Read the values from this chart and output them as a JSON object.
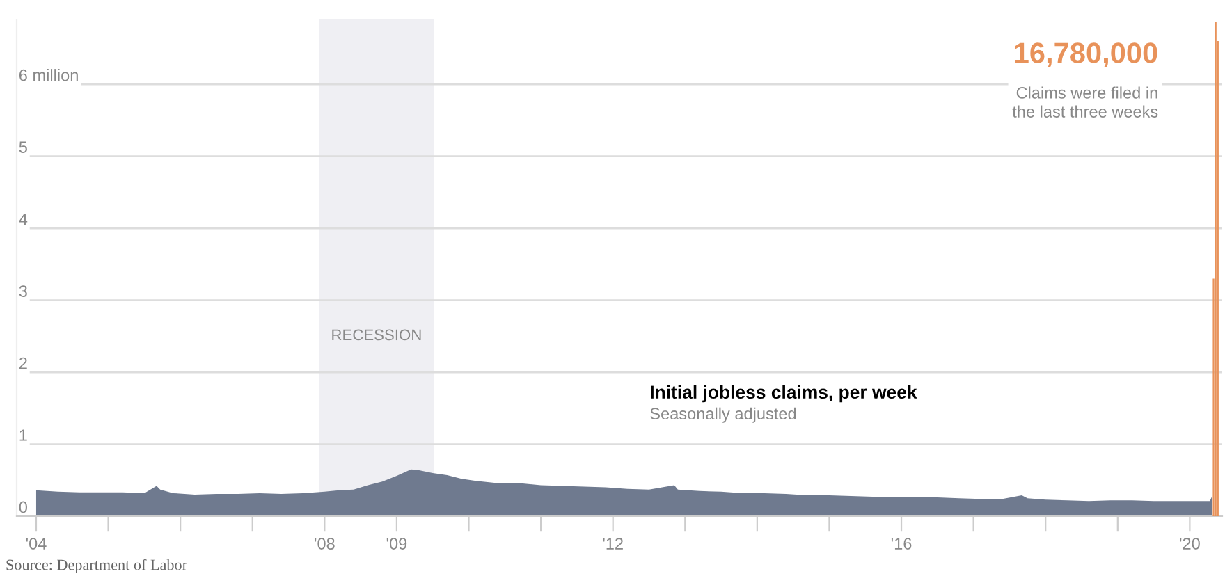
{
  "chart_data": {
    "type": "area",
    "title": "Initial jobless claims, per week",
    "subtitle": "Seasonally adjusted",
    "annotations": [
      "16,780,000",
      "Claims were filed in\nthe last three weeks",
      "Source: Department of Labor"
    ],
    "xlim": [
      2003.73,
      2020.45
    ],
    "xticks": [
      {
        "value": 2004,
        "label": "'04"
      },
      {
        "value": 2005,
        "label": null
      },
      {
        "value": 2006,
        "label": null
      },
      {
        "value": 2007,
        "label": null
      },
      {
        "value": 2008,
        "label": "'08"
      },
      {
        "value": 2009,
        "label": "'09"
      },
      {
        "value": 2010,
        "label": null
      },
      {
        "value": 2011,
        "label": null
      },
      {
        "value": 2012,
        "label": "'12"
      },
      {
        "value": 2013,
        "label": null
      },
      {
        "value": 2014,
        "label": null
      },
      {
        "value": 2015,
        "label": null
      },
      {
        "value": 2016,
        "label": "'16"
      },
      {
        "value": 2017,
        "label": null
      },
      {
        "value": 2018,
        "label": null
      },
      {
        "value": 2019,
        "label": null
      },
      {
        "value": 2020,
        "label": "'20"
      }
    ],
    "ylim": [
      0,
      6.9
    ],
    "yticks": [
      0,
      1,
      2,
      3,
      4,
      5,
      {
        "value": 6,
        "label": "6 million"
      }
    ],
    "grid": "y",
    "bands": [
      {
        "axis": "x",
        "from": 2007.92,
        "to": 2009.52,
        "label": "RECESSION",
        "color": "#efeff3"
      }
    ],
    "series": [
      {
        "color": "#6f7a8f",
        "x": [
          2004.0,
          2004.3,
          2004.6,
          2004.9,
          2005.2,
          2005.5,
          2005.67,
          2005.72,
          2005.9,
          2006.2,
          2006.5,
          2006.8,
          2007.1,
          2007.4,
          2007.7,
          2008.0,
          2008.2,
          2008.4,
          2008.6,
          2008.8,
          2009.0,
          2009.2,
          2009.3,
          2009.5,
          2009.7,
          2009.9,
          2010.1,
          2010.4,
          2010.7,
          2011.0,
          2011.3,
          2011.6,
          2011.9,
          2012.2,
          2012.5,
          2012.85,
          2012.9,
          2013.2,
          2013.5,
          2013.8,
          2014.1,
          2014.4,
          2014.7,
          2015.0,
          2015.3,
          2015.6,
          2015.9,
          2016.2,
          2016.5,
          2016.8,
          2017.1,
          2017.4,
          2017.67,
          2017.75,
          2018.0,
          2018.3,
          2018.6,
          2018.9,
          2019.2,
          2019.5,
          2019.8,
          2020.1,
          2020.28,
          2020.31
        ],
        "values": [
          0.36,
          0.34,
          0.33,
          0.33,
          0.33,
          0.32,
          0.42,
          0.37,
          0.32,
          0.3,
          0.31,
          0.31,
          0.32,
          0.31,
          0.32,
          0.34,
          0.36,
          0.37,
          0.43,
          0.48,
          0.56,
          0.65,
          0.64,
          0.6,
          0.57,
          0.52,
          0.49,
          0.46,
          0.46,
          0.43,
          0.42,
          0.41,
          0.4,
          0.38,
          0.37,
          0.43,
          0.37,
          0.35,
          0.34,
          0.32,
          0.32,
          0.31,
          0.29,
          0.29,
          0.28,
          0.27,
          0.27,
          0.26,
          0.26,
          0.25,
          0.24,
          0.24,
          0.29,
          0.25,
          0.23,
          0.22,
          0.21,
          0.22,
          0.22,
          0.21,
          0.21,
          0.21,
          0.21,
          0.28
        ]
      },
      {
        "type": "bar",
        "color": "#e8925a",
        "x": [
          2020.33,
          2020.36,
          2020.39
        ],
        "values": [
          3.3,
          6.87,
          6.6
        ]
      }
    ]
  }
}
